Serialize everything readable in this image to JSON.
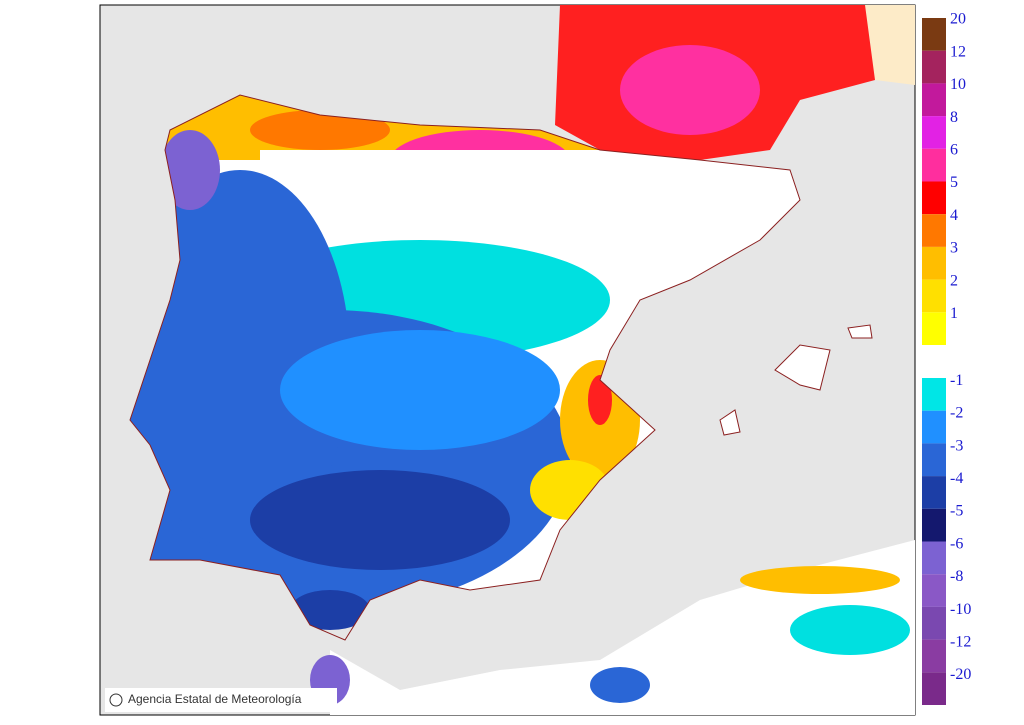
{
  "legend": {
    "positive": [
      {
        "label": "20",
        "color": "#7a3a12"
      },
      {
        "label": "12",
        "color": "#a4235e"
      },
      {
        "label": "10",
        "color": "#c2199c"
      },
      {
        "label": "8",
        "color": "#e222e4"
      },
      {
        "label": "6",
        "color": "#ff2e9e"
      },
      {
        "label": "5",
        "color": "#ff0000"
      },
      {
        "label": "4",
        "color": "#ff7800"
      },
      {
        "label": "3",
        "color": "#ffbe00"
      },
      {
        "label": "2",
        "color": "#ffe000"
      },
      {
        "label": "1",
        "color": "#ffff00"
      }
    ],
    "negative": [
      {
        "label": "-1",
        "color": "#00e6e6"
      },
      {
        "label": "-2",
        "color": "#2090ff"
      },
      {
        "label": "-3",
        "color": "#2a66d6"
      },
      {
        "label": "-4",
        "color": "#1c3ea6"
      },
      {
        "label": "-5",
        "color": "#14186e"
      },
      {
        "label": "-6",
        "color": "#7c62d2"
      },
      {
        "label": "-8",
        "color": "#8a58c6"
      },
      {
        "label": "-10",
        "color": "#7a48b0"
      },
      {
        "label": "-12",
        "color": "#8a3ca2"
      },
      {
        "label": "-20",
        "color": "#7a2a8a"
      }
    ]
  },
  "credit": "Agencia Estatal de Meteorología"
}
